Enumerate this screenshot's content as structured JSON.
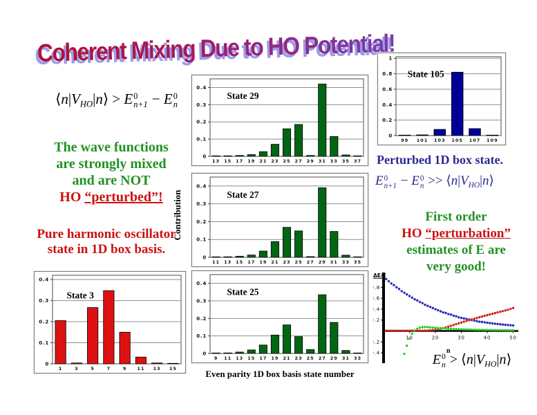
{
  "slide": {
    "title": "Coherent Mixing Due to HO Potential!",
    "colors": {
      "title_gradient_start": "#b01238",
      "title_gradient_end": "#7b3da6",
      "title_shadow": "#9c9cea",
      "green_text": "#229122",
      "red_text": "#cc1111",
      "navy_text": "#28288f",
      "bar_green": "#006614",
      "bar_red": "#dd1111",
      "bar_navy": "#000099"
    },
    "left": {
      "wave_lines": [
        "The wave functions",
        "are strongly mixed",
        "and are NOT"
      ],
      "ho_prefix": "HO ",
      "ho_underlined": "“perturbed”!",
      "pure_lines": [
        "Pure harmonic oscillator",
        "state in 1D box basis."
      ]
    },
    "middle": {
      "ylabel": "Contribution",
      "xlabel": "Even parity 1D box basis state number"
    },
    "right": {
      "caption": "Perturbed 1D box state.",
      "first_order_line1": "First order",
      "fo_prefix": "HO ",
      "fo_underlined": "“perturbation”",
      "first_order_line3": "estimates of E are",
      "first_order_line4": "very good!"
    }
  },
  "formulas": {
    "left": [
      {
        "br": "⟨"
      },
      {
        "i": "n"
      },
      {
        "t": "|"
      },
      {
        "i": "V"
      },
      {
        "sb": "HO"
      },
      {
        "t": "|"
      },
      {
        "i": "n"
      },
      {
        "br": "⟩"
      },
      {
        "t": " > "
      },
      {
        "i": "E"
      },
      {
        "st": [
          "0",
          "n+1"
        ]
      },
      {
        "t": " − "
      },
      {
        "i": "E"
      },
      {
        "st": [
          "0",
          "n"
        ]
      }
    ],
    "right": [
      {
        "i": "E"
      },
      {
        "st": [
          "0",
          "n+1"
        ]
      },
      {
        "t": " − "
      },
      {
        "i": "E"
      },
      {
        "st": [
          "0",
          "n"
        ]
      },
      {
        "t": " >> "
      },
      {
        "br": "⟨"
      },
      {
        "i": "n"
      },
      {
        "t": "|"
      },
      {
        "i": "V"
      },
      {
        "sb": "HO"
      },
      {
        "t": "|"
      },
      {
        "i": "n"
      },
      {
        "br": "⟩"
      }
    ],
    "bottom": [
      {
        "i": "E"
      },
      {
        "st": [
          "0",
          "n"
        ]
      },
      {
        "t": " > "
      },
      {
        "br": "⟨"
      },
      {
        "i": "n"
      },
      {
        "t": "|"
      },
      {
        "i": "V"
      },
      {
        "sb": "HO"
      },
      {
        "t": "|"
      },
      {
        "i": "n"
      },
      {
        "br": "⟩"
      }
    ]
  },
  "chart_data": [
    {
      "id": "state29",
      "type": "bar",
      "title": "State 29",
      "categories": [
        13,
        15,
        17,
        19,
        21,
        23,
        25,
        27,
        29,
        31,
        33,
        35,
        37
      ],
      "values": [
        0.001,
        0.002,
        0.005,
        0.01,
        0.027,
        0.07,
        0.16,
        0.185,
        0.005,
        0.42,
        0.115,
        0.008,
        0.001
      ],
      "xlabel": "Even parity 1D box basis state number",
      "ylabel": "Contribution",
      "ylim": [
        0,
        0.45
      ],
      "ytick_vals": [
        0,
        0.1,
        0.2,
        0.3,
        0.4
      ],
      "ytick_labels": [
        "0",
        "0.1",
        "0.2",
        "0.3",
        "0.4"
      ],
      "bar_color": "#006614",
      "grid": true
    },
    {
      "id": "state27",
      "type": "bar",
      "title": "State 27",
      "categories": [
        11,
        13,
        15,
        17,
        19,
        21,
        23,
        25,
        27,
        29,
        31,
        33,
        35
      ],
      "values": [
        0.001,
        0.003,
        0.006,
        0.013,
        0.035,
        0.088,
        0.168,
        0.148,
        0.004,
        0.39,
        0.145,
        0.012,
        0.001
      ],
      "xlabel": "Even parity 1D box basis state number",
      "ylabel": "Contribution",
      "ylim": [
        0,
        0.45
      ],
      "ytick_vals": [
        0,
        0.1,
        0.2,
        0.3,
        0.4
      ],
      "ytick_labels": [
        "0",
        "0.1",
        "0.2",
        "0.3",
        "0.4"
      ],
      "bar_color": "#006614",
      "grid": true
    },
    {
      "id": "state25",
      "type": "bar",
      "title": "State 25",
      "categories": [
        9,
        11,
        13,
        15,
        17,
        19,
        21,
        23,
        25,
        27,
        29,
        31,
        33
      ],
      "values": [
        0.001,
        0.003,
        0.008,
        0.02,
        0.048,
        0.105,
        0.163,
        0.096,
        0.022,
        0.335,
        0.177,
        0.017,
        0.001
      ],
      "xlabel": "Even parity 1D box basis state number",
      "ylabel": "Contribution",
      "ylim": [
        0,
        0.45
      ],
      "ytick_vals": [
        0,
        0.1,
        0.2,
        0.3,
        0.4
      ],
      "ytick_labels": [
        "0",
        "0.1",
        "0.2",
        "0.3",
        "0.4"
      ],
      "bar_color": "#006614",
      "grid": true
    },
    {
      "id": "state3",
      "type": "bar",
      "title": "State 3",
      "categories": [
        1,
        3,
        5,
        7,
        9,
        11,
        13,
        15
      ],
      "values": [
        0.205,
        0.004,
        0.267,
        0.347,
        0.15,
        0.032,
        0.004,
        0.001
      ],
      "xlabel": "",
      "ylabel": "",
      "ylim": [
        0,
        0.42
      ],
      "ytick_vals": [
        0,
        0.1,
        0.2,
        0.3,
        0.4
      ],
      "ytick_labels": [
        "0",
        "0.1",
        "0.2",
        "0.3",
        "0.4"
      ],
      "bar_color": "#dd1111",
      "grid": true
    },
    {
      "id": "state105",
      "type": "bar",
      "title": "State 105",
      "categories": [
        99,
        101,
        103,
        105,
        107,
        109
      ],
      "values": [
        0.001,
        0.008,
        0.08,
        0.82,
        0.09,
        0.001
      ],
      "xlabel": "",
      "ylabel": "",
      "ylim": [
        0,
        1.02
      ],
      "ytick_vals": [
        0,
        0.2,
        0.4,
        0.6,
        0.8,
        1
      ],
      "ytick_labels": [
        "0",
        "0.2",
        "0.4",
        "0.6",
        "0.8",
        "1"
      ],
      "bar_color": "#000099",
      "grid": true
    },
    {
      "id": "accuracy",
      "type": "scatter",
      "title": "",
      "ylabel": "ΔE/E",
      "xlabel": "n",
      "xlim": [
        0,
        52
      ],
      "ylim": [
        -0.5,
        1.02
      ],
      "xticks": [
        10,
        20,
        30,
        40,
        50
      ],
      "yticks": [
        {
          "v": 0.8,
          "l": "0.8"
        },
        {
          "v": 0.6,
          "l": "0.6"
        },
        {
          "v": 0.4,
          "l": "0.4"
        },
        {
          "v": 0.2,
          "l": "0.2"
        },
        {
          "v": -0.2,
          "l": "-0.2"
        },
        {
          "v": -0.4,
          "l": "-0.4"
        }
      ],
      "series": [
        {
          "name": "mixing-fraction-blue",
          "color": "#2828b4",
          "x_start": 1,
          "y": [
            0.95,
            0.91,
            0.87,
            0.84,
            0.8,
            0.77,
            0.73,
            0.7,
            0.67,
            0.64,
            0.61,
            0.58,
            0.56,
            0.53,
            0.51,
            0.48,
            0.46,
            0.44,
            0.42,
            0.4,
            0.38,
            0.36,
            0.34,
            0.33,
            0.31,
            0.3,
            0.28,
            0.27,
            0.25,
            0.24,
            0.23,
            0.22,
            0.21,
            0.2,
            0.19,
            0.18,
            0.17,
            0.165,
            0.158,
            0.151,
            0.145,
            0.139,
            0.133,
            0.128,
            0.123,
            0.118,
            0.113,
            0.109,
            0.105,
            0.101
          ]
        },
        {
          "name": "rising-error-red",
          "color": "#cc2020",
          "x_start": 1,
          "y": [
            0.004,
            0.004,
            0.004,
            0.004,
            0.004,
            0.004,
            0.004,
            0.004,
            0.004,
            0.004,
            0.004,
            0.004,
            0.004,
            0.004,
            0.004,
            0.006,
            0.008,
            0.012,
            0.016,
            0.022,
            0.03,
            0.04,
            0.052,
            0.065,
            0.08,
            0.095,
            0.11,
            0.125,
            0.14,
            0.155,
            0.17,
            0.185,
            0.198,
            0.212,
            0.225,
            0.238,
            0.252,
            0.265,
            0.278,
            0.29,
            0.303,
            0.315,
            0.328,
            0.34,
            0.352,
            0.364,
            0.376,
            0.388,
            0.405,
            0.42
          ]
        },
        {
          "name": "first-order-estimate-green",
          "color": "#22cc22",
          "x_start": 8,
          "y": [
            -0.42,
            -0.27,
            -0.14,
            -0.05,
            0.01,
            0.04,
            0.06,
            0.07,
            0.072,
            0.07,
            0.066,
            0.062,
            0.058,
            0.054,
            0.051,
            0.048,
            0.045,
            0.042,
            0.04,
            0.037,
            0.035,
            0.033,
            0.031,
            0.029,
            0.028,
            0.026,
            0.025,
            0.023,
            0.022,
            0.021,
            0.02,
            0.019,
            0.018,
            0.017,
            0.016,
            0.016,
            0.015,
            0.014,
            0.014,
            0.013,
            0.013,
            0.012,
            0.012
          ]
        }
      ]
    }
  ]
}
